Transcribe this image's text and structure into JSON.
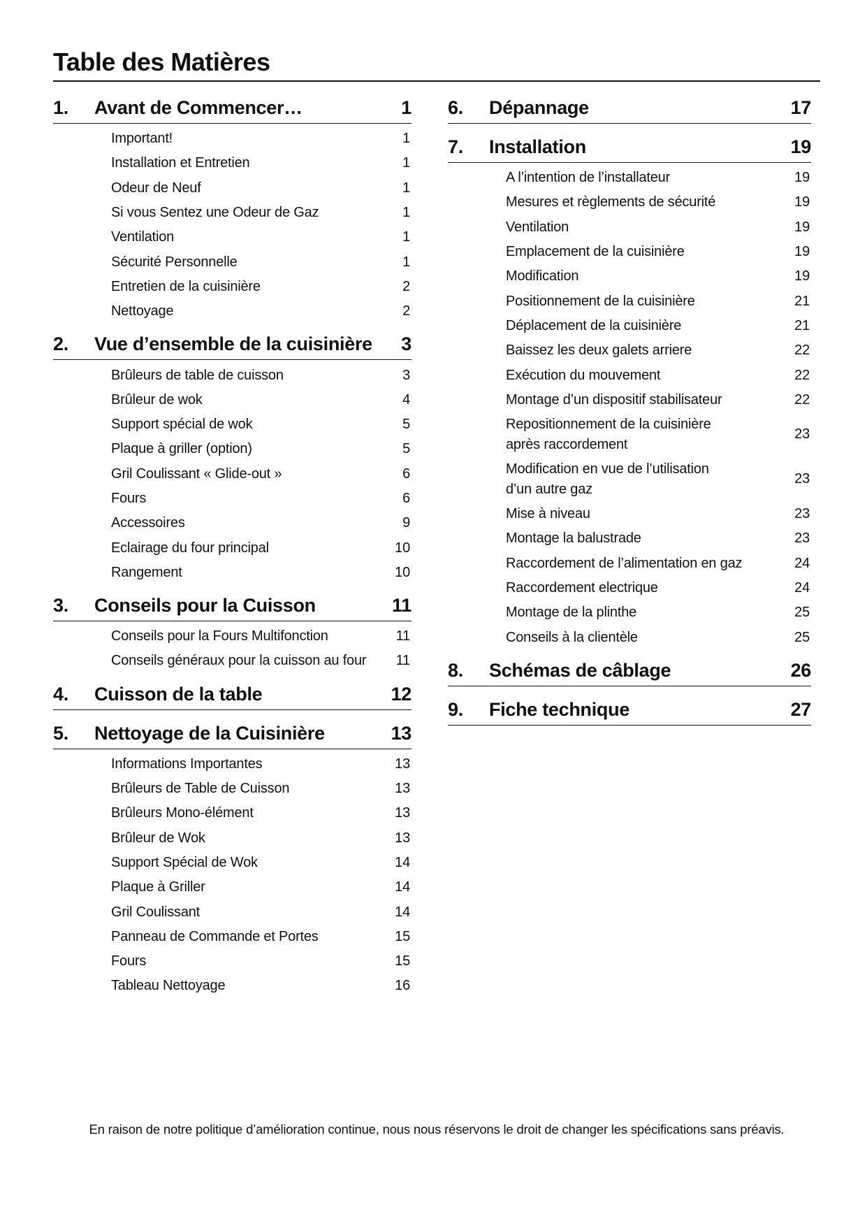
{
  "title": "Table des Matières",
  "left": [
    {
      "num": "1.",
      "title": "Avant de Commencer…",
      "page": "1",
      "items": [
        {
          "label": "Important!",
          "page": "1"
        },
        {
          "label": "Installation et Entretien",
          "page": "1"
        },
        {
          "label": "Odeur de Neuf",
          "page": "1"
        },
        {
          "label": "Si vous Sentez une Odeur de Gaz",
          "page": "1"
        },
        {
          "label": "Ventilation",
          "page": "1"
        },
        {
          "label": "Sécurité Personnelle",
          "page": "1"
        },
        {
          "label": "Entretien de la cuisinière",
          "page": "2"
        },
        {
          "label": "Nettoyage",
          "page": "2"
        }
      ]
    },
    {
      "num": "2.",
      "title": "Vue d’ensemble de la cuisinière",
      "page": "3",
      "items": [
        {
          "label": "Brûleurs de table de cuisson",
          "page": "3"
        },
        {
          "label": "Brûleur de wok",
          "page": "4"
        },
        {
          "label": "Support spécial de wok",
          "page": "5"
        },
        {
          "label": "Plaque à griller (option)",
          "page": "5"
        },
        {
          "label": "Gril Coulissant « Glide-out »",
          "page": "6"
        },
        {
          "label": "Fours",
          "page": "6"
        },
        {
          "label": "Accessoires",
          "page": "9"
        },
        {
          "label": "Eclairage du four principal",
          "page": "10"
        },
        {
          "label": "Rangement",
          "page": "10"
        }
      ]
    },
    {
      "num": "3.",
      "title": "Conseils pour la Cuisson",
      "page": "11",
      "items": [
        {
          "label": "Conseils pour la Fours Multifonction",
          "page": "11"
        },
        {
          "label": "Conseils généraux pour la cuisson au four",
          "page": "11"
        }
      ]
    },
    {
      "num": "4.",
      "title": "Cuisson de la table",
      "page": "12",
      "items": []
    },
    {
      "num": "5.",
      "title": "Nettoyage de la Cuisinière",
      "page": "13",
      "items": [
        {
          "label": "Informations Importantes",
          "page": "13"
        },
        {
          "label": "Brûleurs de Table de Cuisson",
          "page": "13"
        },
        {
          "label": "Brûleurs Mono-élément",
          "page": "13"
        },
        {
          "label": "Brûleur de Wok",
          "page": "13"
        },
        {
          "label": "Support Spécial de Wok",
          "page": "14"
        },
        {
          "label": "Plaque à Griller",
          "page": "14"
        },
        {
          "label": "Gril Coulissant",
          "page": "14"
        },
        {
          "label": "Panneau de Commande et Portes",
          "page": "15"
        },
        {
          "label": "Fours",
          "page": "15"
        },
        {
          "label": "Tableau Nettoyage",
          "page": "16"
        }
      ]
    }
  ],
  "right": [
    {
      "num": "6.",
      "title": "Dépannage",
      "page": "17",
      "items": []
    },
    {
      "num": "7.",
      "title": "Installation",
      "page": "19",
      "items": [
        {
          "label": "A l’intention de l’installateur",
          "page": "19"
        },
        {
          "label": "Mesures et règlements de sécurité",
          "page": "19"
        },
        {
          "label": "Ventilation",
          "page": "19"
        },
        {
          "label": "Emplacement de la cuisinière",
          "page": "19"
        },
        {
          "label": "Modification",
          "page": "19"
        },
        {
          "label": "Positionnement de la cuisinière",
          "page": "21"
        },
        {
          "label": "Déplacement de la cuisinière",
          "page": "21"
        },
        {
          "label": "Baissez les deux galets arriere",
          "page": "22"
        },
        {
          "label": "Exécution du mouvement",
          "page": "22"
        },
        {
          "label": "Montage d’un dispositif stabilisateur",
          "page": "22"
        },
        {
          "label": "Repositionnement de la cuisinière\naprès raccordement",
          "page": "23"
        },
        {
          "label": "Modification en vue de l’utilisation\nd’un autre gaz",
          "page": "23"
        },
        {
          "label": "Mise à niveau",
          "page": "23"
        },
        {
          "label": "Montage la balustrade",
          "page": "23"
        },
        {
          "label": "Raccordement de l’alimentation en gaz",
          "page": "24"
        },
        {
          "label": "Raccordement electrique",
          "page": "24"
        },
        {
          "label": "Montage de la plinthe",
          "page": "25"
        },
        {
          "label": "Conseils à la clientèle",
          "page": "25"
        }
      ]
    },
    {
      "num": "8.",
      "title": "Schémas de câblage",
      "page": "26",
      "items": []
    },
    {
      "num": "9.",
      "title": "Fiche technique",
      "page": "27",
      "items": []
    }
  ],
  "footer": "En raison de notre politique d’amélioration continue, nous nous réservons le droit de changer les spécifications sans préavis."
}
